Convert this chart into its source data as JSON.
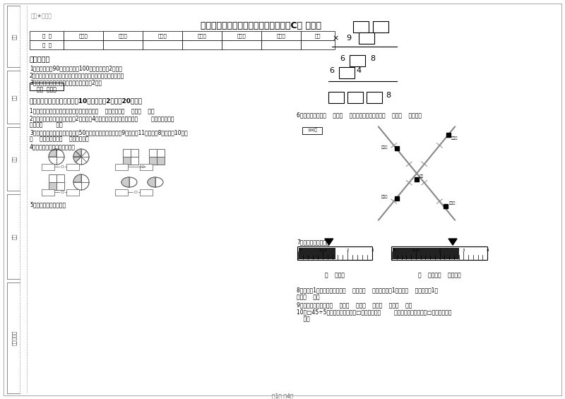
{
  "title": "湘教版三年级数学下学期开学检测试题C卷 含答案",
  "watermark": "微课★应用题",
  "bg_color": "#ffffff",
  "table_headers": [
    "题  号",
    "填空题",
    "选择题",
    "判断题",
    "计算题",
    "综合题",
    "应用题",
    "总分"
  ],
  "table_row0": "得  分",
  "section1_title": "考试须知：",
  "note1": "1、考试时间：90分钟，满分为100分（含卷面分2分）。",
  "note2": "2、请首先按要求在试卷的指定位置填写您的姓名、班级、学号。",
  "note3": "3、不要在试卷上乱写乱画，卷面不整洁扣2分。",
  "score_box_label": "得分  评卷人",
  "section2_title": "一、用心思考，正确填空（共10小题，每题2分，共20分）。",
  "q1": "1、在进位加法中，不管哪一位上的数相加满（    ），都要向（    ）进（    ）。",
  "q2a": "2、劳动课上做纸花，红红做了2朵纸花，4朵蓝花，红花占纸花总数的（        ），蓝花占纸花",
  "q2b": "总数的（        ）。",
  "q3a": "3、体育老师对第一小组同学进行50米跑测试，成绩如下小红9秒，小圆11秒，小明8秒，小军10秒。",
  "q3b": "（    ）跑得最快，（    ）跑得最慢。",
  "q4": "4、看图写分数，并比较大小。",
  "q5": "5、在里填上适当的数。",
  "q6": "6、小红家在学校（    ）方（    ）米处；小明家在学校（    ）方（    ）米处。",
  "q7": "7、量出钉子的长度。",
  "ruler1_below": "（    ）毫米",
  "ruler2_below": "（    ）厘米（    ）毫米。",
  "q8a": "8、分针走1小格，秒针正好走（    ），是（    ）秒。分针走1大格是（    ），时针走1大",
  "q8b": "格是（    ）。",
  "q9": "9、常用的长度单位有（    ）、（    ）、（    ）、（    ）、（    ）。",
  "q10a": "10、□45÷5，要使商是两位数，□里最大可填（        ），要使商是三位数，□里最小应填（",
  "q10b": "    ）。",
  "page_text": "第1页 共4页",
  "sidebar_labels": [
    "学号",
    "姓名",
    "班级",
    "学校",
    "装（撕）线"
  ],
  "map_label_legend": "100米",
  "map_label_school": "学校",
  "map_label_xiaohong": "小红家",
  "map_label_xiaoming": "小明家"
}
